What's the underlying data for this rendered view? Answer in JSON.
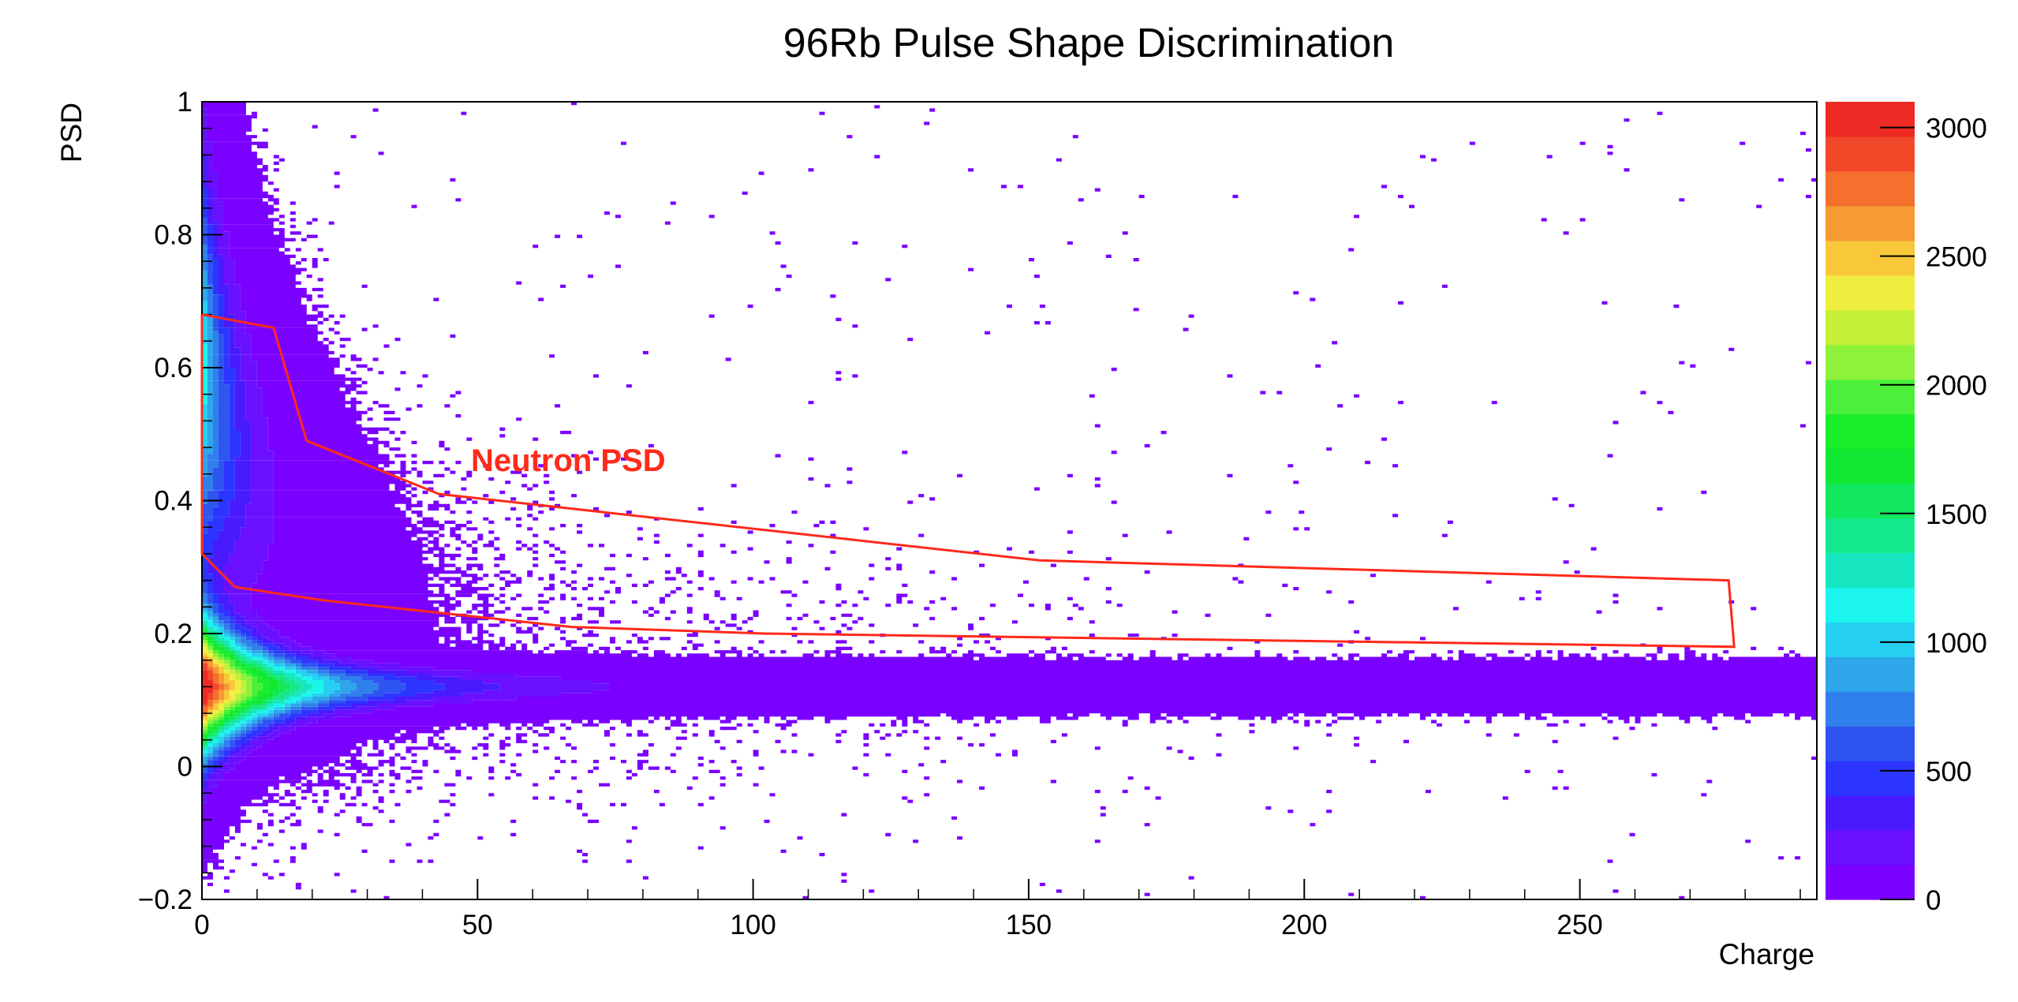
{
  "chart_data": {
    "type": "heatmap",
    "title": "96Rb Pulse Shape Discrimination",
    "xlabel": "Charge",
    "ylabel": "PSD",
    "xlim": [
      0,
      293
    ],
    "ylim": [
      -0.2,
      1.0
    ],
    "x_ticks": [
      0,
      50,
      100,
      150,
      200,
      250
    ],
    "x_tick_labels": [
      "0",
      "50",
      "100",
      "150",
      "200",
      "250"
    ],
    "y_ticks": [
      -0.2,
      0,
      0.2,
      0.4,
      0.6,
      0.8,
      1.0
    ],
    "y_tick_labels": [
      "−0.2",
      "0",
      "0.2",
      "0.4",
      "0.6",
      "0.8",
      "1"
    ],
    "colorbar": {
      "range": [
        0,
        3100
      ],
      "ticks": [
        0,
        500,
        1000,
        1500,
        2000,
        2500,
        3000
      ],
      "tick_labels": [
        "0",
        "500",
        "1000",
        "1500",
        "2000",
        "2500",
        "3000"
      ],
      "colors": [
        "#7a00ff",
        "#6a10ff",
        "#4a1aff",
        "#2c35ff",
        "#2e55f0",
        "#2f80ec",
        "#2ea6ea",
        "#25d0f2",
        "#1cf5ee",
        "#16e6c0",
        "#14e88e",
        "#12e85e",
        "#10e832",
        "#18ee2a",
        "#4cf03a",
        "#8ff23a",
        "#c5f03a",
        "#f0ee40",
        "#f9c83a",
        "#f79a33",
        "#f4702c",
        "#f04828",
        "#ee2a24"
      ]
    },
    "cut_polygon": {
      "label": "Neutron PSD",
      "color": "#ff2a1a",
      "vertices": [
        [
          0,
          0.68
        ],
        [
          13,
          0.66
        ],
        [
          19,
          0.49
        ],
        [
          43,
          0.41
        ],
        [
          152,
          0.31
        ],
        [
          277,
          0.28
        ],
        [
          278,
          0.18
        ],
        [
          102,
          0.2
        ],
        [
          67,
          0.21
        ],
        [
          22,
          0.25
        ],
        [
          6,
          0.27
        ],
        [
          0,
          0.32
        ],
        [
          0,
          0.68
        ]
      ]
    },
    "distributions": {
      "gamma_band": {
        "psd_center": 0.12,
        "peak_charge": 2,
        "peak_count": 3100
      },
      "neutron_band": {
        "psd_center": 0.6,
        "peak_charge": 3,
        "peak_count": 1200
      }
    }
  }
}
